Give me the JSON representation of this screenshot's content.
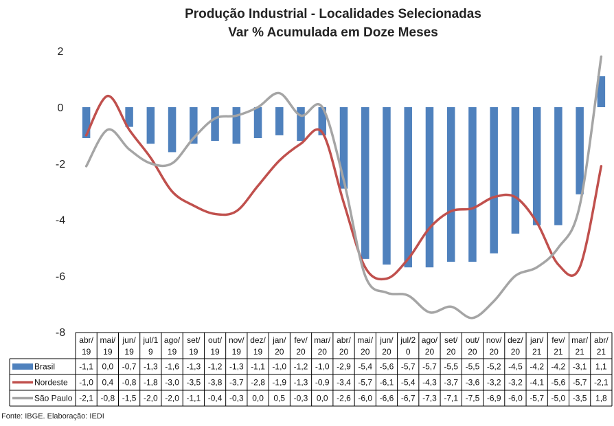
{
  "chart_data": {
    "type": "bar+line",
    "title": "Produção Industrial - Localidades Selecionadas",
    "subtitle": "Var % Acumulada em Doze Meses",
    "categories": [
      [
        "abr/",
        "19"
      ],
      [
        "mai/",
        "19"
      ],
      [
        "jun/",
        "19"
      ],
      [
        "jul/1",
        "9"
      ],
      [
        "ago/",
        "19"
      ],
      [
        "set/",
        "19"
      ],
      [
        "out/",
        "19"
      ],
      [
        "nov/",
        "19"
      ],
      [
        "dez/",
        "19"
      ],
      [
        "jan/",
        "20"
      ],
      [
        "fev/",
        "20"
      ],
      [
        "mar/",
        "20"
      ],
      [
        "abr/",
        "20"
      ],
      [
        "mai/",
        "20"
      ],
      [
        "jun/",
        "20"
      ],
      [
        "jul/2",
        "0"
      ],
      [
        "ago/",
        "20"
      ],
      [
        "set/",
        "20"
      ],
      [
        "out/",
        "20"
      ],
      [
        "nov/",
        "20"
      ],
      [
        "dez/",
        "20"
      ],
      [
        "jan/",
        "21"
      ],
      [
        "fev/",
        "21"
      ],
      [
        "mar/",
        "21"
      ],
      [
        "abr/",
        "21"
      ]
    ],
    "series": [
      {
        "name": "Brasil",
        "kind": "bar",
        "color": "#4f81bd",
        "values": [
          -1.1,
          0.0,
          -0.7,
          -1.3,
          -1.6,
          -1.3,
          -1.2,
          -1.3,
          -1.1,
          -1.0,
          -1.2,
          -1.0,
          -2.9,
          -5.4,
          -5.6,
          -5.7,
          -5.7,
          -5.5,
          -5.5,
          -5.2,
          -4.5,
          -4.2,
          -4.2,
          -3.1,
          1.1
        ],
        "labels": [
          "-1,1",
          "0,0",
          "-0,7",
          "-1,3",
          "-1,6",
          "-1,3",
          "-1,2",
          "-1,3",
          "-1,1",
          "-1,0",
          "-1,2",
          "-1,0",
          "-2,9",
          "-5,4",
          "-5,6",
          "-5,7",
          "-5,7",
          "-5,5",
          "-5,5",
          "-5,2",
          "-4,5",
          "-4,2",
          "-4,2",
          "-3,1",
          "1,1"
        ]
      },
      {
        "name": "Nordeste",
        "kind": "line",
        "color": "#c0504d",
        "values": [
          -1.0,
          0.4,
          -0.8,
          -1.8,
          -3.0,
          -3.5,
          -3.8,
          -3.7,
          -2.8,
          -1.9,
          -1.3,
          -0.9,
          -3.4,
          -5.7,
          -6.1,
          -5.4,
          -4.3,
          -3.7,
          -3.6,
          -3.2,
          -3.2,
          -4.1,
          -5.6,
          -5.7,
          -2.1
        ],
        "labels": [
          "-1,0",
          "0,4",
          "-0,8",
          "-1,8",
          "-3,0",
          "-3,5",
          "-3,8",
          "-3,7",
          "-2,8",
          "-1,9",
          "-1,3",
          "-0,9",
          "-3,4",
          "-5,7",
          "-6,1",
          "-5,4",
          "-4,3",
          "-3,7",
          "-3,6",
          "-3,2",
          "-3,2",
          "-4,1",
          "-5,6",
          "-5,7",
          "-2,1"
        ]
      },
      {
        "name": "São Paulo",
        "kind": "line",
        "color": "#a5a5a5",
        "values": [
          -2.1,
          -0.8,
          -1.5,
          -2.0,
          -2.0,
          -1.1,
          -0.4,
          -0.3,
          0.0,
          0.5,
          -0.3,
          0.0,
          -2.6,
          -6.0,
          -6.6,
          -6.7,
          -7.3,
          -7.1,
          -7.5,
          -6.9,
          -6.0,
          -5.7,
          -5.0,
          -3.5,
          1.8
        ],
        "labels": [
          "-2,1",
          "-0,8",
          "-1,5",
          "-2,0",
          "-2,0",
          "-1,1",
          "-0,4",
          "-0,3",
          "0,0",
          "0,5",
          "-0,3",
          "0,0",
          "-2,6",
          "-6,0",
          "-6,6",
          "-6,7",
          "-7,3",
          "-7,1",
          "-7,5",
          "-6,9",
          "-6,0",
          "-5,7",
          "-5,0",
          "-3,5",
          "1,8"
        ]
      }
    ],
    "yticks": [
      2,
      0,
      -2,
      -4,
      -6,
      -8
    ],
    "ytick_labels": [
      "2",
      "0",
      "-2",
      "-4",
      "-6",
      "-8"
    ],
    "ylim": [
      -8,
      2
    ],
    "grid": false,
    "legend": "data-table",
    "source": "Fonte:  IBGE. Elaboração: IEDI"
  }
}
